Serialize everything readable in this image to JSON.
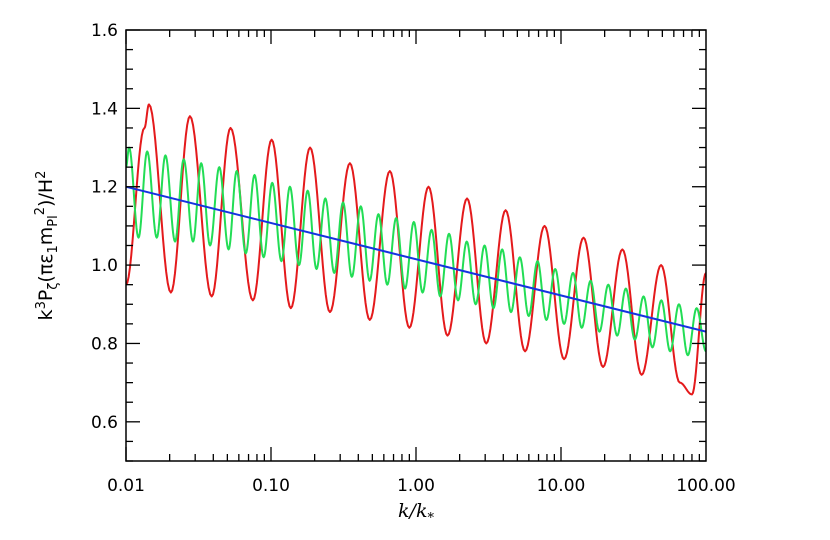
{
  "chart_data": {
    "type": "line",
    "title": "",
    "xlabel": "k/k*",
    "ylabel": "k3Pζ(πε1mPl2)/H2",
    "x_scale": "log",
    "xlim": [
      0.01,
      100.0
    ],
    "ylim": [
      0.5,
      1.6
    ],
    "x_ticks": [
      0.01,
      0.1,
      1.0,
      10.0,
      100.0
    ],
    "x_tick_labels": [
      "0.01",
      "0.10",
      "1.00",
      "10.00",
      "100.00"
    ],
    "y_ticks": [
      0.6,
      0.8,
      1.0,
      1.2,
      1.4,
      1.6
    ],
    "y_tick_labels": [
      "0.6",
      "0.8",
      "1.0",
      "1.2",
      "1.4",
      "1.6"
    ],
    "grid": false,
    "legend": "none",
    "colors": {
      "red": "#e41a1c",
      "green": "#22dd55",
      "blue": "#1533e0",
      "axes": "#000000"
    },
    "series": [
      {
        "color": "red",
        "x": [
          0.01,
          0.0134,
          0.0144,
          0.0204,
          0.0276,
          0.039,
          0.0526,
          0.075,
          0.101,
          0.137,
          0.186,
          0.255,
          0.35,
          0.48,
          0.66,
          0.9,
          1.22,
          1.65,
          2.25,
          3.05,
          4.15,
          5.65,
          7.7,
          10.5,
          14.3,
          19.5,
          26.5,
          36.0,
          49.0,
          66.0,
          80.0,
          100.0
        ],
        "y": [
          0.95,
          1.35,
          1.41,
          0.93,
          1.38,
          0.92,
          1.35,
          0.91,
          1.32,
          0.89,
          1.3,
          0.88,
          1.26,
          0.86,
          1.24,
          0.84,
          1.2,
          0.82,
          1.17,
          0.8,
          1.14,
          0.78,
          1.1,
          0.76,
          1.07,
          0.74,
          1.04,
          0.72,
          1.0,
          0.7,
          0.67,
          0.98
        ]
      },
      {
        "color": "green",
        "x": [
          0.01,
          0.0105,
          0.0122,
          0.014,
          0.0163,
          0.0187,
          0.0218,
          0.025,
          0.029,
          0.033,
          0.038,
          0.044,
          0.051,
          0.058,
          0.067,
          0.077,
          0.089,
          0.102,
          0.118,
          0.135,
          0.156,
          0.179,
          0.206,
          0.237,
          0.273,
          0.314,
          0.361,
          0.416,
          0.479,
          0.551,
          0.634,
          0.73,
          0.84,
          0.966,
          1.11,
          1.28,
          1.47,
          1.69,
          1.95,
          2.24,
          2.58,
          2.97,
          3.42,
          3.93,
          4.52,
          5.2,
          5.99,
          6.89,
          7.93,
          9.12,
          10.5,
          12.1,
          13.9,
          16.0,
          18.4,
          21.2,
          24.4,
          28.0,
          32.3,
          37.1,
          42.7,
          49.2,
          56.6,
          65.1,
          74.9,
          86.2,
          100.0
        ],
        "y": [
          1.25,
          1.3,
          1.07,
          1.29,
          1.07,
          1.28,
          1.06,
          1.27,
          1.06,
          1.26,
          1.05,
          1.25,
          1.04,
          1.24,
          1.03,
          1.23,
          1.02,
          1.21,
          1.01,
          1.2,
          1.0,
          1.19,
          0.99,
          1.17,
          0.98,
          1.16,
          0.97,
          1.15,
          0.96,
          1.13,
          0.95,
          1.12,
          0.94,
          1.11,
          0.93,
          1.09,
          0.92,
          1.08,
          0.91,
          1.06,
          0.9,
          1.05,
          0.89,
          1.04,
          0.88,
          1.02,
          0.87,
          1.01,
          0.86,
          0.99,
          0.85,
          0.98,
          0.84,
          0.96,
          0.83,
          0.95,
          0.82,
          0.94,
          0.81,
          0.92,
          0.79,
          0.91,
          0.78,
          0.9,
          0.77,
          0.89,
          0.78
        ]
      },
      {
        "color": "blue",
        "x": [
          0.01,
          100.0
        ],
        "y": [
          1.2,
          0.83
        ]
      }
    ]
  }
}
